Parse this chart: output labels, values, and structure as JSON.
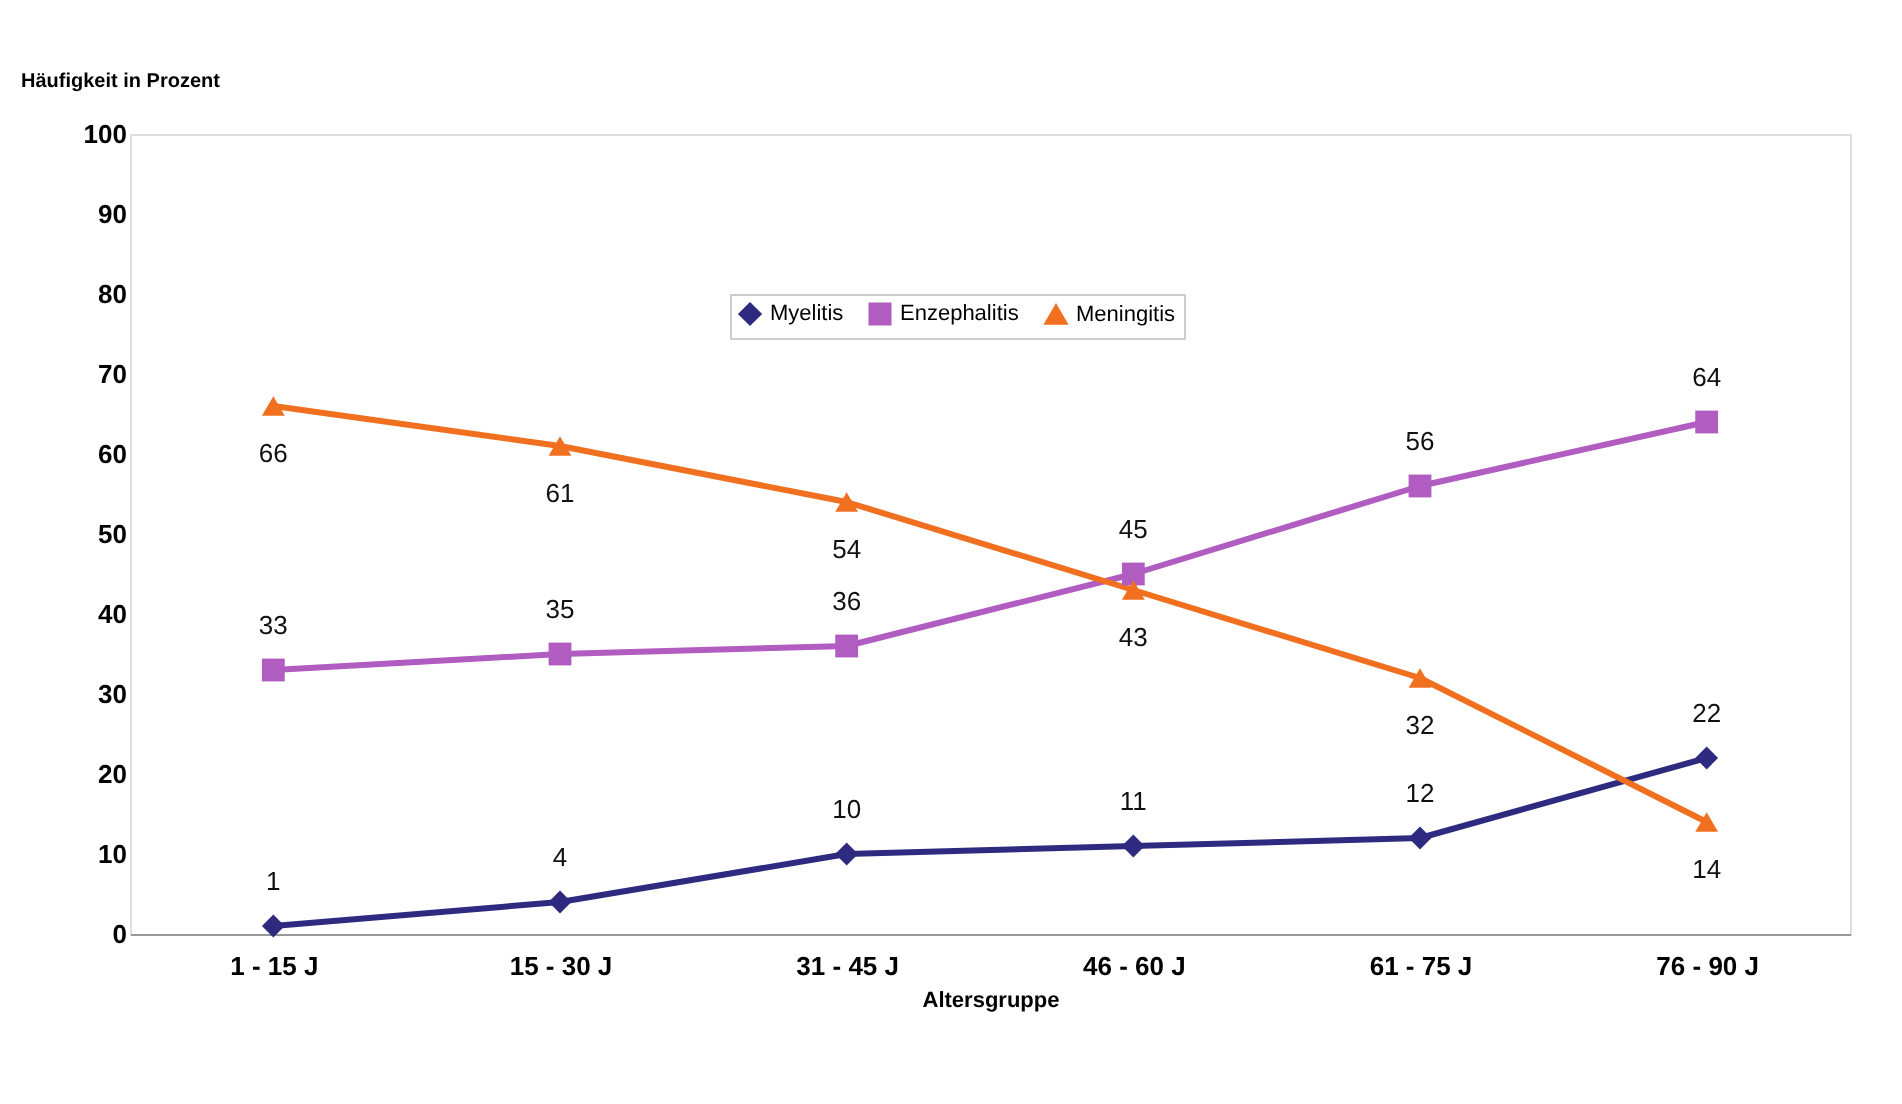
{
  "chart_data": {
    "type": "line",
    "ylabel": "Häufigkeit in Prozent",
    "xlabel": "Altersgruppe",
    "categories": [
      "1 - 15 J",
      "15 - 30 J",
      "31 - 45 J",
      "46 - 60 J",
      "61 - 75 J",
      "76 - 90 J"
    ],
    "series": [
      {
        "name": "Myelitis",
        "color": "#2e2a7f",
        "marker": "diamond",
        "values": [
          1,
          4,
          10,
          11,
          12,
          22
        ]
      },
      {
        "name": "Enzephalitis",
        "color": "#b05cc0",
        "marker": "square",
        "values": [
          33,
          35,
          36,
          45,
          56,
          64
        ]
      },
      {
        "name": "Meningitis",
        "color": "#f07020",
        "marker": "triangle",
        "values": [
          66,
          61,
          54,
          43,
          32,
          14
        ]
      }
    ],
    "ylim": [
      0,
      100
    ],
    "yticks": [
      0,
      10,
      20,
      30,
      40,
      50,
      60,
      70,
      80,
      90,
      100
    ],
    "grid": false,
    "legend": "top",
    "data_labels": true,
    "line_style": "solid"
  }
}
